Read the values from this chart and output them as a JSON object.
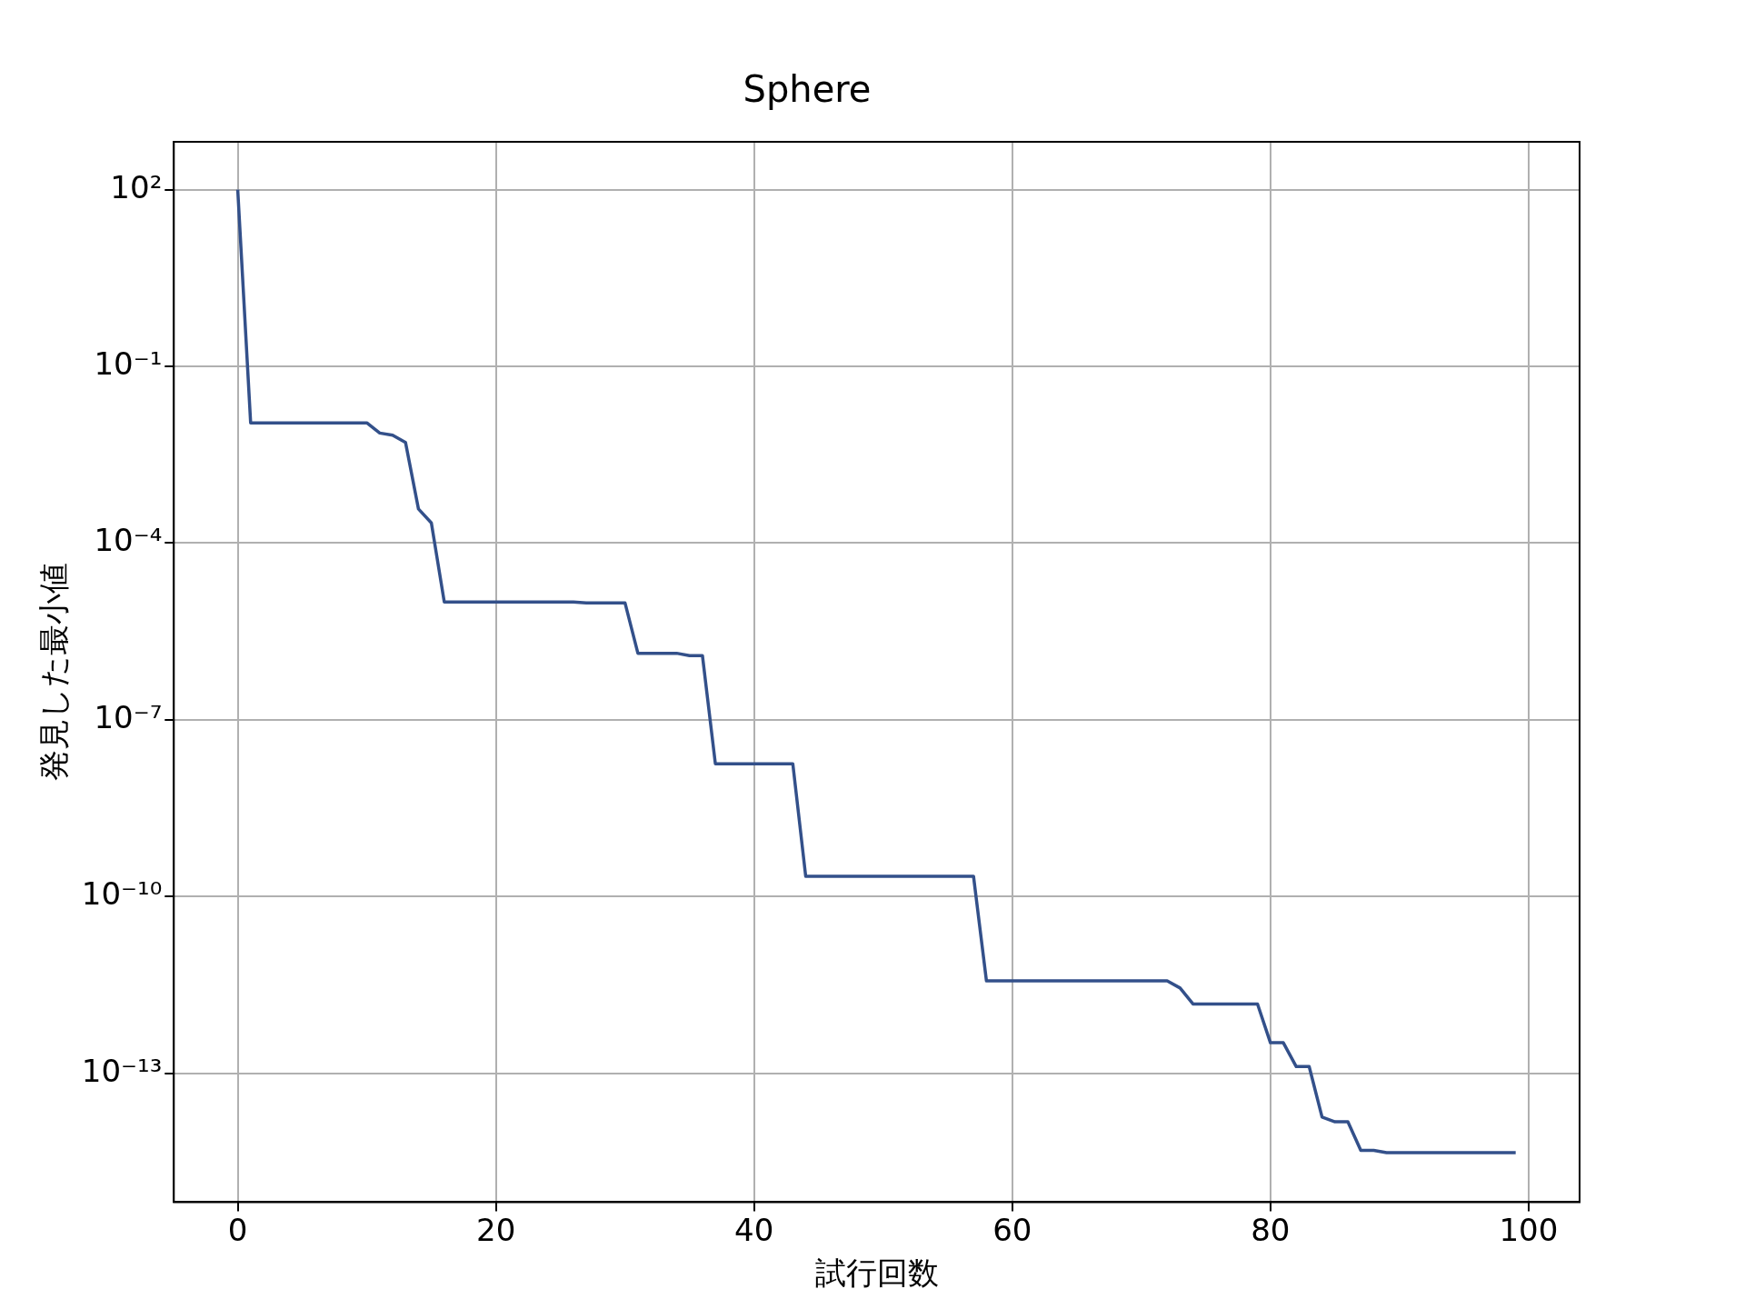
{
  "chart_data": {
    "type": "line",
    "title": "Sphere",
    "xlabel": "試行回数",
    "ylabel": "発見した最小値",
    "log": "y",
    "grid": true,
    "legend": false,
    "marker": "none",
    "line_style": "solid",
    "xlim": [
      -4.95,
      103.95
    ],
    "xticks": [
      0,
      20,
      40,
      60,
      80,
      100
    ],
    "ylim": [
      6.5e-16,
      650
    ],
    "yticks": [
      {
        "value": 100,
        "label": "10²"
      },
      {
        "value": 0.1,
        "label": "10⁻¹"
      },
      {
        "value": 0.0001,
        "label": "10⁻⁴"
      },
      {
        "value": 1e-07,
        "label": "10⁻⁷"
      },
      {
        "value": 1e-10,
        "label": "10⁻¹⁰"
      },
      {
        "value": 1e-13,
        "label": "10⁻¹³"
      }
    ],
    "series": [
      {
        "color": "#33508a",
        "x": [
          0,
          1,
          2,
          3,
          4,
          5,
          6,
          7,
          8,
          9,
          10,
          11,
          12,
          13,
          14,
          15,
          16,
          17,
          18,
          19,
          20,
          21,
          22,
          23,
          24,
          25,
          26,
          27,
          28,
          29,
          30,
          31,
          32,
          33,
          34,
          35,
          36,
          37,
          38,
          39,
          40,
          41,
          42,
          43,
          44,
          45,
          46,
          47,
          48,
          49,
          50,
          51,
          52,
          53,
          54,
          55,
          56,
          57,
          58,
          59,
          60,
          61,
          62,
          63,
          64,
          65,
          66,
          67,
          68,
          69,
          70,
          71,
          72,
          73,
          74,
          75,
          76,
          77,
          78,
          79,
          80,
          81,
          82,
          83,
          84,
          85,
          86,
          87,
          88,
          89,
          90,
          91,
          92,
          93,
          94,
          95,
          96,
          97,
          98,
          99
        ],
        "values": [
          100,
          0.011,
          0.011,
          0.011,
          0.011,
          0.011,
          0.011,
          0.011,
          0.011,
          0.011,
          0.011,
          0.0074,
          0.0068,
          0.0051,
          0.00038,
          0.00022,
          1e-05,
          1e-05,
          1e-05,
          1e-05,
          1e-05,
          1e-05,
          1e-05,
          1e-05,
          1e-05,
          1e-05,
          1e-05,
          9.7e-06,
          9.7e-06,
          9.7e-06,
          9.7e-06,
          1.35e-06,
          1.35e-06,
          1.35e-06,
          1.35e-06,
          1.23e-06,
          1.23e-06,
          1.8e-08,
          1.8e-08,
          1.8e-08,
          1.8e-08,
          1.8e-08,
          1.8e-08,
          1.8e-08,
          2.2e-10,
          2.2e-10,
          2.2e-10,
          2.2e-10,
          2.2e-10,
          2.2e-10,
          2.2e-10,
          2.2e-10,
          2.2e-10,
          2.2e-10,
          2.2e-10,
          2.2e-10,
          2.2e-10,
          2.2e-10,
          3.7e-12,
          3.7e-12,
          3.7e-12,
          3.7e-12,
          3.7e-12,
          3.7e-12,
          3.7e-12,
          3.7e-12,
          3.7e-12,
          3.7e-12,
          3.7e-12,
          3.7e-12,
          3.7e-12,
          3.7e-12,
          3.7e-12,
          2.8e-12,
          1.5e-12,
          1.5e-12,
          1.5e-12,
          1.5e-12,
          1.5e-12,
          1.5e-12,
          3.3e-13,
          3.3e-13,
          1.3e-13,
          1.3e-13,
          1.8e-14,
          1.5e-14,
          1.5e-14,
          4.9e-15,
          4.9e-15,
          4.5e-15,
          4.5e-15,
          4.5e-15,
          4.5e-15,
          4.5e-15,
          4.5e-15,
          4.5e-15,
          4.5e-15,
          4.5e-15,
          4.5e-15,
          4.5e-15
        ]
      }
    ]
  }
}
